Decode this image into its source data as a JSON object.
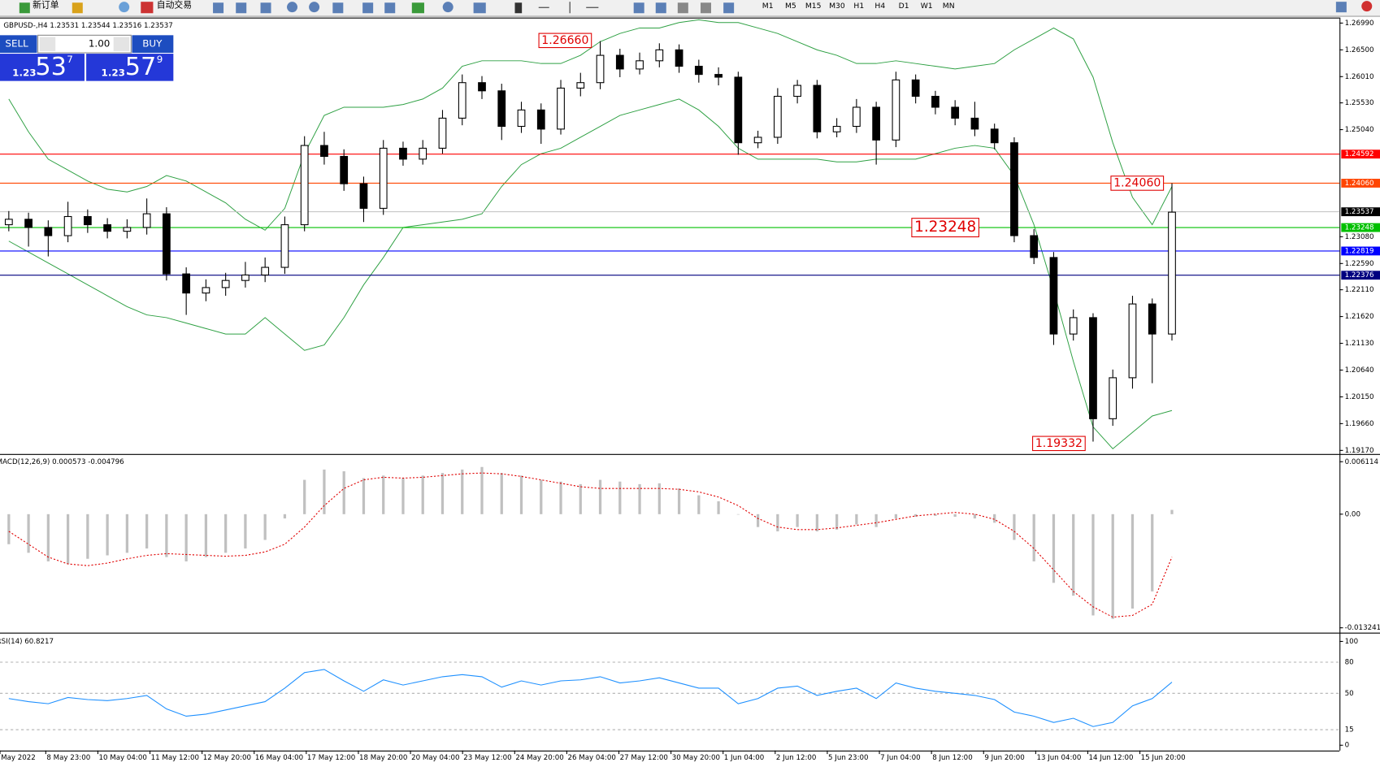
{
  "toolbar": {
    "new_order": "新订单",
    "auto_trading": "自动交易",
    "timeframes": [
      "M1",
      "M5",
      "M15",
      "M30",
      "H1",
      "H4",
      "D1",
      "W1",
      "MN"
    ]
  },
  "chart_header": "GBPUSD-,H4  1.23531 1.23544 1.23516 1.23537",
  "trade_panel": {
    "sell": "SELL",
    "lot": "1.00",
    "buy": "BUY",
    "bid_prefix": "1.23",
    "bid_big": "53",
    "bid_small": "7",
    "ask_prefix": "1.23",
    "ask_big": "57",
    "ask_small": "9"
  },
  "price_chart": {
    "ylim": [
      1.1912,
      1.2709
    ],
    "yticks": [
      {
        "value": 1.2699,
        "label": "1.26990"
      },
      {
        "value": 1.265,
        "label": "1.26500"
      },
      {
        "value": 1.2601,
        "label": "1.26010"
      },
      {
        "value": 1.2553,
        "label": "1.25530"
      },
      {
        "value": 1.2504,
        "label": "1.25040"
      },
      {
        "value": 1.2308,
        "label": "1.23080"
      },
      {
        "value": 1.2259,
        "label": "1.22590"
      },
      {
        "value": 1.2211,
        "label": "1.22110"
      },
      {
        "value": 1.2162,
        "label": "1.21620"
      },
      {
        "value": 1.2113,
        "label": "1.21130"
      },
      {
        "value": 1.2064,
        "label": "1.20640"
      },
      {
        "value": 1.2015,
        "label": "1.20150"
      },
      {
        "value": 1.1966,
        "label": "1.19660"
      },
      {
        "value": 1.1917,
        "label": "1.19170"
      }
    ],
    "open": [
      1.233,
      1.234,
      1.2325,
      1.231,
      1.2345,
      1.233,
      1.2318,
      1.2325,
      1.235,
      1.224,
      1.2205,
      1.2215,
      1.2228,
      1.2238,
      1.2252,
      1.233,
      1.2475,
      1.2455,
      1.2405,
      1.236,
      1.247,
      1.245,
      1.247,
      1.2525,
      1.259,
      1.2575,
      1.251,
      1.254,
      1.2505,
      1.258,
      1.259,
      1.264,
      1.2615,
      1.263,
      1.265,
      1.262,
      1.2605,
      1.26,
      1.248,
      1.249,
      1.2565,
      1.2585,
      1.25,
      1.251,
      1.2545,
      1.2485,
      1.2595,
      1.2565,
      1.2545,
      1.2525,
      1.2505,
      1.248,
      1.231,
      1.227,
      1.213,
      1.216,
      1.1975,
      1.205,
      1.2185,
      1.213
    ],
    "high": [
      1.2355,
      1.2352,
      1.2338,
      1.2372,
      1.2358,
      1.2342,
      1.234,
      1.2378,
      1.2362,
      1.2252,
      1.223,
      1.2242,
      1.2262,
      1.227,
      1.2345,
      1.2492,
      1.25,
      1.2468,
      1.2418,
      1.2485,
      1.2482,
      1.2485,
      1.254,
      1.2605,
      1.2602,
      1.2588,
      1.2555,
      1.2552,
      1.2595,
      1.2608,
      1.2666,
      1.2652,
      1.2645,
      1.2662,
      1.266,
      1.2632,
      1.2618,
      1.261,
      1.2502,
      1.258,
      1.2595,
      1.2595,
      1.2525,
      1.256,
      1.2555,
      1.261,
      1.2605,
      1.2575,
      1.2558,
      1.2555,
      1.2515,
      1.249,
      1.2322,
      1.228,
      1.2175,
      1.2168,
      1.2065,
      1.22,
      1.2195,
      1.2406
    ],
    "low": [
      1.2318,
      1.229,
      1.2272,
      1.2298,
      1.2315,
      1.2305,
      1.2305,
      1.2312,
      1.2228,
      1.2165,
      1.219,
      1.22,
      1.2215,
      1.2225,
      1.224,
      1.2318,
      1.244,
      1.2392,
      1.2335,
      1.2348,
      1.2438,
      1.244,
      1.246,
      1.2512,
      1.256,
      1.2485,
      1.2498,
      1.2478,
      1.2495,
      1.2565,
      1.2578,
      1.26,
      1.2605,
      1.2618,
      1.2608,
      1.259,
      1.2585,
      1.2458,
      1.247,
      1.2478,
      1.2552,
      1.2488,
      1.249,
      1.2498,
      1.244,
      1.2472,
      1.2552,
      1.2532,
      1.2512,
      1.2492,
      1.2468,
      1.2298,
      1.2258,
      1.211,
      1.2118,
      1.19332,
      1.1962,
      1.203,
      1.204,
      1.2118
    ],
    "close": [
      1.234,
      1.2325,
      1.231,
      1.2345,
      1.233,
      1.2318,
      1.2325,
      1.235,
      1.224,
      1.2205,
      1.2215,
      1.2228,
      1.2238,
      1.2252,
      1.233,
      1.2475,
      1.2455,
      1.2405,
      1.236,
      1.247,
      1.245,
      1.247,
      1.2525,
      1.259,
      1.2575,
      1.251,
      1.254,
      1.2505,
      1.258,
      1.259,
      1.264,
      1.2615,
      1.263,
      1.265,
      1.262,
      1.2605,
      1.26,
      1.248,
      1.249,
      1.2565,
      1.2585,
      1.25,
      1.251,
      1.2545,
      1.2485,
      1.2595,
      1.2565,
      1.2545,
      1.2525,
      1.2505,
      1.248,
      1.231,
      1.227,
      1.213,
      1.216,
      1.1975,
      1.205,
      1.2185,
      1.213,
      1.2353
    ],
    "bands_upper": [
      1.256,
      1.25,
      1.245,
      1.243,
      1.241,
      1.2395,
      1.239,
      1.24,
      1.242,
      1.241,
      1.239,
      1.237,
      1.234,
      1.232,
      1.236,
      1.246,
      1.253,
      1.2545,
      1.2545,
      1.2545,
      1.255,
      1.256,
      1.258,
      1.262,
      1.263,
      1.263,
      1.263,
      1.2625,
      1.2625,
      1.264,
      1.2665,
      1.268,
      1.269,
      1.269,
      1.27,
      1.2705,
      1.27,
      1.27,
      1.269,
      1.268,
      1.2665,
      1.265,
      1.264,
      1.2625,
      1.2625,
      1.263,
      1.2625,
      1.262,
      1.2615,
      1.262,
      1.2625,
      1.265,
      1.267,
      1.269,
      1.267,
      1.26,
      1.248,
      1.238,
      1.233,
      1.24
    ],
    "bands_lower": [
      1.23,
      1.228,
      1.226,
      1.224,
      1.222,
      1.22,
      1.218,
      1.2165,
      1.216,
      1.215,
      1.214,
      1.213,
      1.213,
      1.216,
      1.213,
      1.21,
      1.211,
      1.216,
      1.222,
      1.227,
      1.2325,
      1.233,
      1.2335,
      1.234,
      1.235,
      1.24,
      1.244,
      1.246,
      1.247,
      1.249,
      1.251,
      1.253,
      1.254,
      1.255,
      1.256,
      1.254,
      1.251,
      1.247,
      1.245,
      1.245,
      1.245,
      1.245,
      1.2445,
      1.2445,
      1.245,
      1.245,
      1.245,
      1.246,
      1.247,
      1.2475,
      1.247,
      1.242,
      1.233,
      1.221,
      1.208,
      1.196,
      1.192,
      1.195,
      1.198,
      1.199
    ],
    "levels": [
      {
        "value": 1.24592,
        "label": "1.24592",
        "color": "#ff0000"
      },
      {
        "value": 1.2406,
        "label": "1.24060",
        "color": "#ff4500"
      },
      {
        "value": 1.23537,
        "label": "1.23537",
        "color": "#000000"
      },
      {
        "value": 1.23248,
        "label": "1.23248",
        "color": "#00c000"
      },
      {
        "value": 1.22819,
        "label": "1.22819",
        "color": "#0000ff"
      },
      {
        "value": 1.22376,
        "label": "1.22376",
        "color": "#000080"
      }
    ],
    "annotations": [
      {
        "value": 1.2666,
        "label": "1.26660"
      },
      {
        "value": 1.2406,
        "label": "1.24060"
      },
      {
        "value": 1.23248,
        "label": "1.23248"
      },
      {
        "value": 1.19332,
        "label": "1.19332"
      }
    ]
  },
  "macd": {
    "title": "MACD(12,26,9) 0.000573 -0.004796",
    "ylim": [
      -0.0136,
      0.0066
    ],
    "yticks": [
      0.006114,
      {
        "value": 0,
        "label": "0.00"
      },
      -0.013241
    ],
    "histogram": [
      -0.0035,
      -0.0045,
      -0.0055,
      -0.0058,
      -0.0052,
      -0.0048,
      -0.0045,
      -0.004,
      -0.005,
      -0.0055,
      -0.005,
      -0.0045,
      -0.004,
      -0.003,
      -0.0005,
      0.004,
      0.0052,
      0.005,
      0.0042,
      0.0045,
      0.0042,
      0.0045,
      0.0048,
      0.0052,
      0.0055,
      0.0048,
      0.0045,
      0.004,
      0.0038,
      0.0035,
      0.004,
      0.0038,
      0.0035,
      0.0036,
      0.003,
      0.0022,
      0.0015,
      0.0,
      -0.0015,
      -0.002,
      -0.0015,
      -0.002,
      -0.0018,
      -0.0012,
      -0.0015,
      -0.0005,
      -0.0003,
      -0.0002,
      -0.0003,
      -0.0005,
      -0.001,
      -0.003,
      -0.0055,
      -0.008,
      -0.0095,
      -0.0118,
      -0.0122,
      -0.011,
      -0.009,
      0.0005
    ],
    "signal": [
      -0.002,
      -0.0035,
      -0.005,
      -0.0058,
      -0.006,
      -0.0057,
      -0.0052,
      -0.0048,
      -0.0046,
      -0.0047,
      -0.0048,
      -0.0049,
      -0.0048,
      -0.0044,
      -0.0035,
      -0.0015,
      0.001,
      0.003,
      0.004,
      0.0043,
      0.0042,
      0.0043,
      0.0045,
      0.0047,
      0.0048,
      0.0047,
      0.0044,
      0.004,
      0.0036,
      0.0032,
      0.003,
      0.003,
      0.003,
      0.003,
      0.0029,
      0.0026,
      0.002,
      0.001,
      -0.0005,
      -0.0015,
      -0.0018,
      -0.0018,
      -0.0016,
      -0.0013,
      -0.001,
      -0.0006,
      -0.0002,
      0.0,
      0.0002,
      0.0,
      -0.0006,
      -0.002,
      -0.004,
      -0.0065,
      -0.009,
      -0.0108,
      -0.012,
      -0.0118,
      -0.0105,
      -0.005
    ]
  },
  "rsi": {
    "title": "RSI(14) 60.8217",
    "ylim": [
      0,
      100
    ],
    "yticks": [
      0,
      15,
      50,
      80,
      100
    ],
    "values": [
      45,
      42,
      40,
      46,
      44,
      43,
      45,
      48,
      35,
      28,
      30,
      34,
      38,
      42,
      55,
      70,
      73,
      62,
      52,
      63,
      58,
      62,
      66,
      68,
      66,
      56,
      62,
      58,
      62,
      63,
      66,
      60,
      62,
      65,
      60,
      55,
      55,
      40,
      45,
      55,
      57,
      48,
      52,
      55,
      45,
      60,
      55,
      52,
      50,
      48,
      44,
      32,
      28,
      22,
      26,
      18,
      22,
      38,
      45,
      60.8
    ]
  },
  "time_axis": [
    "May 2022",
    "8 May 23:00",
    "10 May 04:00",
    "11 May 12:00",
    "12 May 20:00",
    "16 May 04:00",
    "17 May 12:00",
    "18 May 20:00",
    "20 May 04:00",
    "23 May 12:00",
    "24 May 20:00",
    "26 May 04:00",
    "27 May 12:00",
    "30 May 20:00",
    "1 Jun 04:00",
    "2 Jun 12:00",
    "5 Jun 23:00",
    "7 Jun 04:00",
    "8 Jun 12:00",
    "9 Jun 20:00",
    "13 Jun 04:00",
    "14 Jun 12:00",
    "15 Jun 20:00"
  ]
}
